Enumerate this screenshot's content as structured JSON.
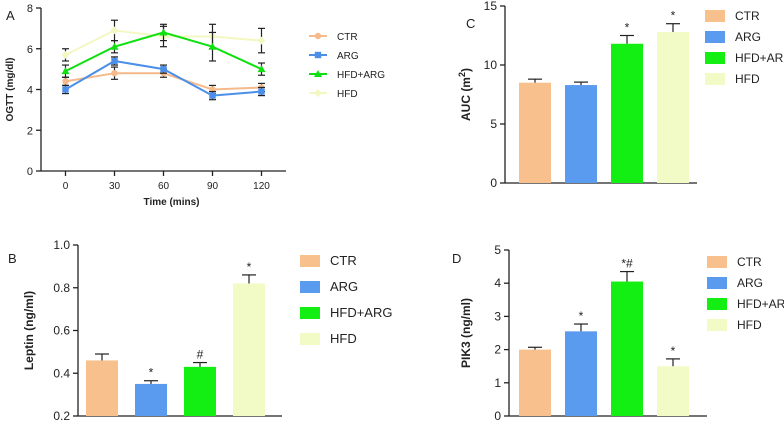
{
  "figure": {
    "legend_labels": [
      "CTR",
      "ARG",
      "HFD+ARG",
      "HFD"
    ],
    "colors": {
      "CTR": "#F8C08C",
      "ARG": "#5B9BEF",
      "HFD+ARG": "#13EE13",
      "HFD": "#F2FBC6"
    },
    "line_colors": {
      "CTR": "#F5B98A",
      "ARG": "#4C8FE8",
      "HFD+ARG": "#10E010",
      "HFD": "#F3F8C2"
    }
  },
  "chart_data": [
    {
      "panel": "A",
      "type": "line",
      "ylabel": "OGTT (mg/dl)",
      "xlabel": "Time (mins)",
      "x": [
        0,
        30,
        60,
        90,
        120
      ],
      "xlim": [
        -15,
        135
      ],
      "ylim": [
        0,
        8
      ],
      "yticks": [
        0,
        2,
        4,
        6,
        8
      ],
      "series": [
        {
          "name": "CTR",
          "marker": "circle",
          "values": [
            4.4,
            4.8,
            4.8,
            4.0,
            4.1
          ],
          "errors": [
            0.2,
            0.3,
            0.2,
            0.2,
            0.2
          ]
        },
        {
          "name": "ARG",
          "marker": "square",
          "values": [
            4.0,
            5.4,
            5.0,
            3.7,
            3.9
          ],
          "errors": [
            0.2,
            0.2,
            0.2,
            0.2,
            0.2
          ]
        },
        {
          "name": "HFD+ARG",
          "marker": "triangle",
          "values": [
            4.9,
            6.1,
            6.8,
            6.1,
            5.0
          ],
          "errors": [
            0.3,
            0.3,
            0.4,
            0.7,
            0.3
          ]
        },
        {
          "name": "HFD",
          "marker": "diamond",
          "values": [
            5.7,
            6.9,
            6.6,
            6.6,
            6.4
          ],
          "errors": [
            0.3,
            0.5,
            0.5,
            0.6,
            0.6
          ]
        }
      ]
    },
    {
      "panel": "C",
      "type": "bar",
      "ylabel_main": "AUC (m",
      "ylabel_sup": "2",
      "ylabel_end": ")",
      "categories": [
        "CTR",
        "ARG",
        "HFD+ARG",
        "HFD"
      ],
      "values": [
        8.5,
        8.3,
        11.8,
        12.8
      ],
      "errors": [
        0.3,
        0.25,
        0.7,
        0.7
      ],
      "annotations": [
        "",
        "",
        "*",
        "*"
      ],
      "ylim": [
        0,
        15
      ],
      "yticks": [
        0,
        5,
        10,
        15
      ]
    },
    {
      "panel": "B",
      "type": "bar",
      "ylabel": "Leptin (ng/ml)",
      "categories": [
        "CTR",
        "ARG",
        "HFD+ARG",
        "HFD"
      ],
      "values": [
        0.46,
        0.35,
        0.43,
        0.82
      ],
      "errors": [
        0.03,
        0.015,
        0.02,
        0.04
      ],
      "annotations": [
        "",
        "*",
        "#",
        "*"
      ],
      "ylim": [
        0.2,
        1.0
      ],
      "yticks": [
        0.2,
        0.4,
        0.6,
        0.8,
        1.0
      ],
      "ytick_labels": [
        "0.2",
        "0.4",
        "0.6",
        "0.8",
        "1.0"
      ]
    },
    {
      "panel": "D",
      "type": "bar",
      "ylabel": "PIK3 (ng/ml)",
      "categories": [
        "CTR",
        "ARG",
        "HFD+ARG",
        "HFD"
      ],
      "values": [
        2.0,
        2.55,
        4.05,
        1.5
      ],
      "errors": [
        0.07,
        0.22,
        0.3,
        0.22
      ],
      "annotations": [
        "",
        "*",
        "*#",
        "*"
      ],
      "ylim": [
        0,
        5
      ],
      "yticks": [
        0,
        1,
        2,
        3,
        4,
        5
      ]
    }
  ]
}
